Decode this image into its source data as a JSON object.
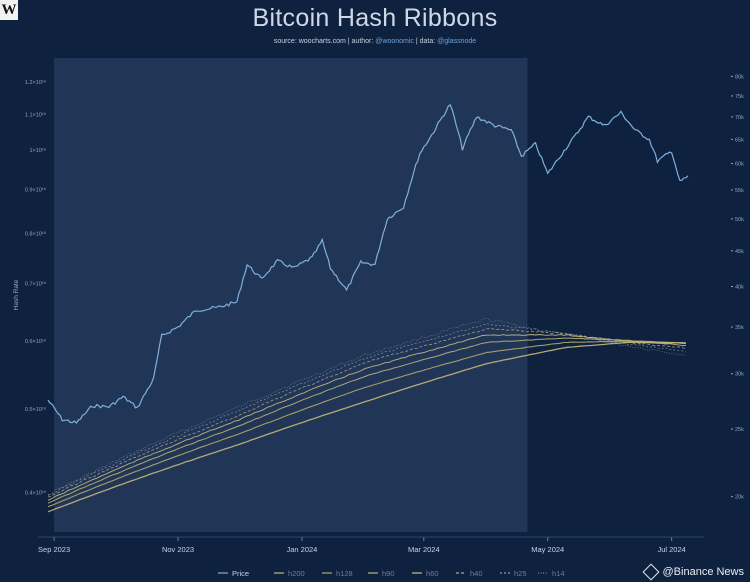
{
  "logo": "W",
  "header": {
    "title": "Bitcoin Hash Ribbons",
    "source_prefix": "source:",
    "source": "woocharts.com",
    "author_prefix": "| author:",
    "author": "@woonomic",
    "data_prefix": "| data:",
    "data_src": "@glassnode"
  },
  "watermark": "@Binance News",
  "colors": {
    "background": "#0e2240",
    "highlight": "#253a5b",
    "price": "#7fb0dd",
    "h200": "#c7b676",
    "h128": "#b3a86e",
    "h90": "#c0b378",
    "h60": "#cdbf86",
    "h40": "#a6a896",
    "h25": "#8f97a0",
    "h14": "#7c8790"
  },
  "chart_data": {
    "type": "line",
    "title": "Bitcoin Hash Ribbons",
    "ylabel": "Hash Rate",
    "left_axis": {
      "scale": "log",
      "ticks": [
        {
          "value": 400,
          "label": "0.4×10¹⁸"
        },
        {
          "value": 500,
          "label": "0.5×10¹⁸"
        },
        {
          "value": 600,
          "label": "0.6×10¹⁸"
        },
        {
          "value": 700,
          "label": "0.7×10¹⁸"
        },
        {
          "value": 800,
          "label": "0.8×10¹⁸"
        },
        {
          "value": 900,
          "label": "0.9×10¹⁸"
        },
        {
          "value": 1000,
          "label": "1×10¹⁸"
        },
        {
          "value": 1100,
          "label": "1.1×10¹⁸"
        },
        {
          "value": 1200,
          "label": "1.2×10¹⁸"
        }
      ]
    },
    "right_axis": {
      "scale": "log",
      "ticks": [
        "20k",
        "25k",
        "30k",
        "35k",
        "40k",
        "45k",
        "50k",
        "55k",
        "60k",
        "65k",
        "70k",
        "75k",
        "80k"
      ]
    },
    "x_ticks": [
      {
        "label": "Sep 2023",
        "date": "2023-09-01"
      },
      {
        "label": "Nov 2023",
        "date": "2023-11-01"
      },
      {
        "label": "Jan 2024",
        "date": "2024-01-01"
      },
      {
        "label": "Mar 2024",
        "date": "2024-03-01"
      },
      {
        "label": "May 2024",
        "date": "2024-05-01"
      },
      {
        "label": "Jul 2024",
        "date": "2024-07-01"
      }
    ],
    "highlight_range": [
      "2023-09-01",
      "2024-04-21"
    ],
    "legend": [
      "Price",
      "h200",
      "h128",
      "h90",
      "h60",
      "h40",
      "h25",
      "h14"
    ],
    "legend_position": "bottom",
    "price": {
      "axis": "right",
      "unit": "USD",
      "points": [
        [
          "2023-08-29",
          27500
        ],
        [
          "2023-09-05",
          25800
        ],
        [
          "2023-09-12",
          25500
        ],
        [
          "2023-09-20",
          27000
        ],
        [
          "2023-09-28",
          26900
        ],
        [
          "2023-10-05",
          27800
        ],
        [
          "2023-10-12",
          26800
        ],
        [
          "2023-10-20",
          29500
        ],
        [
          "2023-10-24",
          34000
        ],
        [
          "2023-11-01",
          35000
        ],
        [
          "2023-11-10",
          37000
        ],
        [
          "2023-11-20",
          37300
        ],
        [
          "2023-11-30",
          38000
        ],
        [
          "2023-12-05",
          43000
        ],
        [
          "2023-12-12",
          41000
        ],
        [
          "2023-12-20",
          43500
        ],
        [
          "2023-12-28",
          42500
        ],
        [
          "2024-01-06",
          44000
        ],
        [
          "2024-01-11",
          46500
        ],
        [
          "2024-01-15",
          42500
        ],
        [
          "2024-01-23",
          39500
        ],
        [
          "2024-01-30",
          43300
        ],
        [
          "2024-02-06",
          43000
        ],
        [
          "2024-02-12",
          50000
        ],
        [
          "2024-02-20",
          52000
        ],
        [
          "2024-02-28",
          62000
        ],
        [
          "2024-03-05",
          66000
        ],
        [
          "2024-03-14",
          73000
        ],
        [
          "2024-03-20",
          63000
        ],
        [
          "2024-03-27",
          70000
        ],
        [
          "2024-04-05",
          68000
        ],
        [
          "2024-04-13",
          67000
        ],
        [
          "2024-04-18",
          61500
        ],
        [
          "2024-04-25",
          64000
        ],
        [
          "2024-05-01",
          58000
        ],
        [
          "2024-05-08",
          62000
        ],
        [
          "2024-05-15",
          66000
        ],
        [
          "2024-05-21",
          70000
        ],
        [
          "2024-05-29",
          68000
        ],
        [
          "2024-06-06",
          71000
        ],
        [
          "2024-06-13",
          67000
        ],
        [
          "2024-06-20",
          65000
        ],
        [
          "2024-06-24",
          60500
        ],
        [
          "2024-07-01",
          62500
        ],
        [
          "2024-07-05",
          56500
        ],
        [
          "2024-07-09",
          57500
        ]
      ]
    },
    "series": [
      {
        "name": "h200",
        "points": [
          [
            "2023-08-29",
            380
          ],
          [
            "2023-12-01",
            455
          ],
          [
            "2024-02-01",
            510
          ],
          [
            "2024-04-01",
            565
          ],
          [
            "2024-05-10",
            590
          ],
          [
            "2024-06-10",
            598
          ],
          [
            "2024-07-09",
            597
          ]
        ]
      },
      {
        "name": "h128",
        "points": [
          [
            "2023-08-29",
            385
          ],
          [
            "2023-12-01",
            468
          ],
          [
            "2024-02-01",
            530
          ],
          [
            "2024-04-01",
            582
          ],
          [
            "2024-05-10",
            598
          ],
          [
            "2024-06-10",
            600
          ],
          [
            "2024-07-09",
            597
          ]
        ]
      },
      {
        "name": "h90",
        "points": [
          [
            "2023-08-29",
            389
          ],
          [
            "2023-12-01",
            478
          ],
          [
            "2024-02-01",
            546
          ],
          [
            "2024-04-01",
            598
          ],
          [
            "2024-05-10",
            605
          ],
          [
            "2024-06-10",
            601
          ],
          [
            "2024-07-09",
            596
          ]
        ]
      },
      {
        "name": "h60",
        "points": [
          [
            "2023-08-29",
            392
          ],
          [
            "2023-12-01",
            486
          ],
          [
            "2024-02-01",
            557
          ],
          [
            "2024-04-01",
            610
          ],
          [
            "2024-05-10",
            610
          ],
          [
            "2024-06-10",
            600
          ],
          [
            "2024-07-09",
            593
          ]
        ]
      },
      {
        "name": "h40",
        "points": [
          [
            "2023-08-29",
            395
          ],
          [
            "2023-12-01",
            492
          ],
          [
            "2024-02-01",
            566
          ],
          [
            "2024-04-01",
            620
          ],
          [
            "2024-05-10",
            612
          ],
          [
            "2024-06-10",
            598
          ],
          [
            "2024-07-09",
            588
          ]
        ]
      },
      {
        "name": "h25",
        "points": [
          [
            "2023-08-29",
            397
          ],
          [
            "2023-12-01",
            498
          ],
          [
            "2024-02-01",
            573
          ],
          [
            "2024-04-01",
            628
          ],
          [
            "2024-05-10",
            612
          ],
          [
            "2024-06-10",
            595
          ],
          [
            "2024-07-09",
            583
          ]
        ]
      },
      {
        "name": "h14",
        "points": [
          [
            "2023-08-29",
            398
          ],
          [
            "2023-12-01",
            503
          ],
          [
            "2024-02-01",
            578
          ],
          [
            "2024-04-01",
            636
          ],
          [
            "2024-05-10",
            610
          ],
          [
            "2024-06-10",
            592
          ],
          [
            "2024-07-09",
            578
          ]
        ]
      }
    ]
  }
}
